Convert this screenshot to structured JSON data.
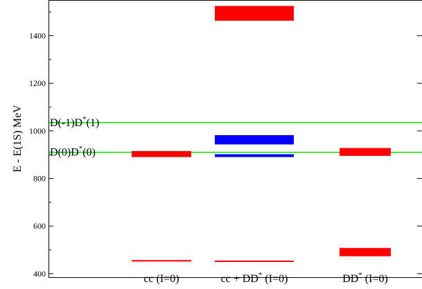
{
  "chart_data": {
    "type": "bar",
    "title": "",
    "ylabel": "E - E(1S) MeV",
    "xlabel": "",
    "ylim": [
      385,
      1550
    ],
    "yticks": [
      400,
      600,
      800,
      1000,
      1200,
      1400
    ],
    "grid": false,
    "categories": [
      {
        "base": "cc",
        "sup": "",
        "suffix": " (I=0)"
      },
      {
        "base": "cc + DD",
        "sup": "*",
        "suffix": " (I=0)"
      },
      {
        "base": "DD",
        "sup": "*",
        "suffix": " (I=0)"
      }
    ],
    "thresholds": [
      {
        "value": 1035,
        "label_base": "D(-1)D",
        "label_sup": "*",
        "label_suffix": "(1)",
        "color": "#00e000"
      },
      {
        "value": 910,
        "label_base": "D(0)D",
        "label_sup": "*",
        "label_suffix": "(0)",
        "color": "#00e000"
      }
    ],
    "levels": [
      {
        "category": 0,
        "low": 451,
        "high": 457,
        "color": "#ff0000"
      },
      {
        "category": 0,
        "low": 890,
        "high": 915,
        "color": "#ff0000"
      },
      {
        "category": 1,
        "low": 451,
        "high": 455,
        "color": "#ff0000"
      },
      {
        "category": 1,
        "low": 890,
        "high": 902,
        "color": "#0000ff"
      },
      {
        "category": 1,
        "low": 943,
        "high": 982,
        "color": "#0000ff"
      },
      {
        "category": 1,
        "low": 1463,
        "high": 1525,
        "color": "#ff0000"
      },
      {
        "category": 2,
        "low": 473,
        "high": 508,
        "color": "#ff0000"
      },
      {
        "category": 2,
        "low": 895,
        "high": 928,
        "color": "#ff0000"
      }
    ]
  }
}
